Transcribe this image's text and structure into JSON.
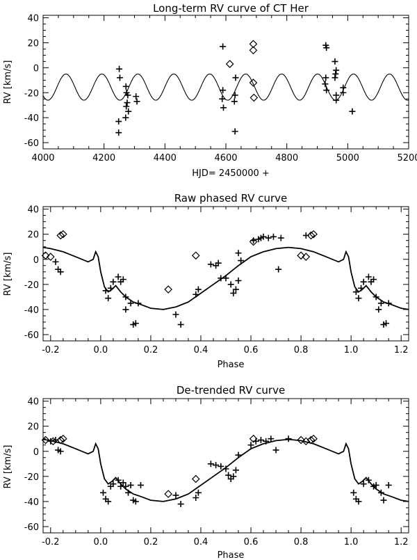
{
  "chart_data": [
    {
      "type": "scatter",
      "title": "Long-term RV curve of CT Her",
      "xlabel": "HJD= 2450000  +",
      "ylabel": "RV [km/s]",
      "xlim": [
        4000,
        5200
      ],
      "ylim": [
        -65,
        42
      ],
      "xticks": [
        4000,
        4200,
        4400,
        4600,
        4800,
        5000,
        5200
      ],
      "yticks": [
        -60,
        -40,
        -20,
        0,
        20,
        40
      ],
      "curve": {
        "name": "long-term model",
        "mean": -15.5,
        "amplitude": 10.5,
        "period": 118,
        "phase0": 4075
      },
      "series": [
        {
          "name": "plus",
          "marker": "+",
          "points": [
            [
              4250,
              -1
            ],
            [
              4252,
              -8
            ],
            [
              4248,
              -43
            ],
            [
              4248,
              -52
            ],
            [
              4272,
              -15
            ],
            [
              4274,
              -20
            ],
            [
              4276,
              -28
            ],
            [
              4273,
              -31
            ],
            [
              4271,
              -40
            ],
            [
              4280,
              -35
            ],
            [
              4278,
              -22
            ],
            [
              4305,
              -23
            ],
            [
              4308,
              -27
            ],
            [
              4590,
              17
            ],
            [
              4590,
              -18
            ],
            [
              4588,
              -25
            ],
            [
              4592,
              -32
            ],
            [
              4632,
              -8
            ],
            [
              4628,
              -27
            ],
            [
              4630,
              -22
            ],
            [
              4630,
              -51
            ],
            [
              4928,
              18
            ],
            [
              4930,
              16
            ],
            [
              4926,
              -13
            ],
            [
              4930,
              -18
            ],
            [
              4928,
              -8
            ],
            [
              4958,
              5
            ],
            [
              4962,
              -2
            ],
            [
              4960,
              -5
            ],
            [
              4958,
              -8
            ],
            [
              4962,
              -22
            ],
            [
              4962,
              -26
            ],
            [
              4985,
              -16
            ],
            [
              4985,
              -20
            ],
            [
              5015,
              -35
            ]
          ]
        },
        {
          "name": "diamond",
          "marker": "diamond",
          "points": [
            [
              4613,
              3
            ],
            [
              4690,
              19
            ],
            [
              4690,
              14
            ],
            [
              4690,
              -12
            ],
            [
              4692,
              -24
            ]
          ]
        }
      ]
    },
    {
      "type": "scatter",
      "title": "Raw phased RV curve",
      "xlabel": "Phase",
      "ylabel": "RV [km/s]",
      "xlim": [
        -0.23,
        1.23
      ],
      "ylim": [
        -65,
        42
      ],
      "xticks": [
        -0.2,
        0.0,
        0.2,
        0.4,
        0.6,
        0.8,
        1.0,
        1.2
      ],
      "yticks": [
        -60,
        -40,
        -20,
        0,
        20,
        40
      ],
      "curve": {
        "name": "model",
        "points": [
          [
            -0.23,
            9.5
          ],
          [
            -0.2,
            8.5
          ],
          [
            -0.15,
            6
          ],
          [
            -0.1,
            2
          ],
          [
            -0.05,
            -2
          ],
          [
            -0.03,
            0
          ],
          [
            -0.02,
            6
          ],
          [
            -0.01,
            2
          ],
          [
            0.0,
            -10
          ],
          [
            0.015,
            -22
          ],
          [
            0.03,
            -26
          ],
          [
            0.045,
            -24
          ],
          [
            0.06,
            -21
          ],
          [
            0.08,
            -26
          ],
          [
            0.1,
            -30
          ],
          [
            0.13,
            -34
          ],
          [
            0.16,
            -36
          ],
          [
            0.2,
            -39
          ],
          [
            0.25,
            -40
          ],
          [
            0.3,
            -38
          ],
          [
            0.35,
            -34
          ],
          [
            0.4,
            -27
          ],
          [
            0.45,
            -20
          ],
          [
            0.5,
            -13
          ],
          [
            0.55,
            -5
          ],
          [
            0.6,
            2
          ],
          [
            0.65,
            6
          ],
          [
            0.7,
            8.5
          ],
          [
            0.75,
            9.5
          ],
          [
            0.8,
            8.5
          ],
          [
            0.85,
            6
          ],
          [
            0.9,
            2
          ],
          [
            0.95,
            -2
          ],
          [
            0.97,
            0
          ],
          [
            0.98,
            6
          ],
          [
            0.99,
            2
          ],
          [
            1.0,
            -10
          ],
          [
            1.015,
            -22
          ],
          [
            1.03,
            -26
          ],
          [
            1.045,
            -24
          ],
          [
            1.06,
            -21
          ],
          [
            1.08,
            -26
          ],
          [
            1.1,
            -30
          ],
          [
            1.13,
            -34
          ],
          [
            1.16,
            -36
          ],
          [
            1.2,
            -39
          ],
          [
            1.23,
            -40
          ]
        ]
      },
      "series": [
        {
          "name": "plus",
          "marker": "+",
          "points": [
            [
              -0.18,
              -2
            ],
            [
              -0.17,
              -8
            ],
            [
              -0.16,
              -10
            ],
            [
              0.02,
              -25
            ],
            [
              0.03,
              -31
            ],
            [
              0.04,
              -23
            ],
            [
              0.05,
              -18
            ],
            [
              0.07,
              -14
            ],
            [
              0.08,
              -18
            ],
            [
              0.09,
              -16
            ],
            [
              0.1,
              -30
            ],
            [
              0.1,
              -40
            ],
            [
              0.12,
              -35
            ],
            [
              0.13,
              -52
            ],
            [
              0.14,
              -51
            ],
            [
              0.15,
              -35
            ],
            [
              0.3,
              -44
            ],
            [
              0.32,
              -52
            ],
            [
              0.38,
              -28
            ],
            [
              0.39,
              -24
            ],
            [
              0.44,
              -4
            ],
            [
              0.46,
              -5
            ],
            [
              0.47,
              -3
            ],
            [
              0.48,
              -15
            ],
            [
              0.5,
              -15
            ],
            [
              0.52,
              -20
            ],
            [
              0.53,
              -27
            ],
            [
              0.54,
              -24
            ],
            [
              0.55,
              -17
            ],
            [
              0.55,
              5
            ],
            [
              0.56,
              -1
            ],
            [
              0.61,
              15
            ],
            [
              0.63,
              16
            ],
            [
              0.64,
              17
            ],
            [
              0.65,
              18
            ],
            [
              0.67,
              17
            ],
            [
              0.69,
              18
            ],
            [
              0.71,
              -8
            ],
            [
              0.72,
              17
            ],
            [
              0.82,
              19
            ],
            [
              1.02,
              -26
            ],
            [
              1.03,
              -31
            ],
            [
              1.04,
              -23
            ],
            [
              1.05,
              -18
            ],
            [
              1.07,
              -14
            ],
            [
              1.08,
              -18
            ],
            [
              1.09,
              -16
            ],
            [
              1.1,
              -30
            ],
            [
              1.11,
              -40
            ],
            [
              1.12,
              -35
            ],
            [
              1.13,
              -52
            ],
            [
              1.14,
              -51
            ],
            [
              1.15,
              -35
            ]
          ]
        },
        {
          "name": "diamond",
          "marker": "diamond",
          "points": [
            [
              -0.22,
              3
            ],
            [
              -0.2,
              2
            ],
            [
              -0.16,
              19
            ],
            [
              -0.15,
              20
            ],
            [
              0.27,
              -24
            ],
            [
              0.38,
              3
            ],
            [
              0.61,
              14
            ],
            [
              0.8,
              3
            ],
            [
              0.82,
              2
            ],
            [
              0.84,
              19
            ],
            [
              0.85,
              20
            ]
          ]
        }
      ]
    },
    {
      "type": "scatter",
      "title": "De-trended RV curve",
      "xlabel": "Phase",
      "ylabel": "RV [km/s]",
      "xlim": [
        -0.23,
        1.23
      ],
      "ylim": [
        -65,
        42
      ],
      "xticks": [
        -0.2,
        0.0,
        0.2,
        0.4,
        0.6,
        0.8,
        1.0,
        1.2
      ],
      "yticks": [
        -60,
        -40,
        -20,
        0,
        20,
        40
      ],
      "curve": {
        "name": "model",
        "points": [
          [
            -0.23,
            9.5
          ],
          [
            -0.2,
            8.5
          ],
          [
            -0.15,
            6
          ],
          [
            -0.1,
            2
          ],
          [
            -0.05,
            -2
          ],
          [
            -0.03,
            0
          ],
          [
            -0.02,
            6
          ],
          [
            -0.01,
            2
          ],
          [
            0.0,
            -10
          ],
          [
            0.015,
            -22
          ],
          [
            0.03,
            -26
          ],
          [
            0.045,
            -24
          ],
          [
            0.06,
            -21
          ],
          [
            0.08,
            -26
          ],
          [
            0.1,
            -30
          ],
          [
            0.13,
            -34
          ],
          [
            0.16,
            -36
          ],
          [
            0.2,
            -39
          ],
          [
            0.25,
            -40
          ],
          [
            0.3,
            -38
          ],
          [
            0.35,
            -34
          ],
          [
            0.4,
            -27
          ],
          [
            0.45,
            -20
          ],
          [
            0.5,
            -13
          ],
          [
            0.55,
            -5
          ],
          [
            0.6,
            2
          ],
          [
            0.65,
            6
          ],
          [
            0.7,
            8.5
          ],
          [
            0.75,
            9.5
          ],
          [
            0.8,
            8.5
          ],
          [
            0.85,
            6
          ],
          [
            0.9,
            2
          ],
          [
            0.95,
            -2
          ],
          [
            0.97,
            0
          ],
          [
            0.98,
            6
          ],
          [
            0.99,
            2
          ],
          [
            1.0,
            -10
          ],
          [
            1.015,
            -22
          ],
          [
            1.03,
            -26
          ],
          [
            1.045,
            -24
          ],
          [
            1.06,
            -21
          ],
          [
            1.08,
            -26
          ],
          [
            1.1,
            -30
          ],
          [
            1.13,
            -34
          ],
          [
            1.16,
            -36
          ],
          [
            1.2,
            -39
          ],
          [
            1.23,
            -40
          ]
        ]
      },
      "series": [
        {
          "name": "plus",
          "marker": "+",
          "points": [
            [
              -0.2,
              8
            ],
            [
              -0.18,
              9
            ],
            [
              -0.17,
              1
            ],
            [
              -0.16,
              0
            ],
            [
              0.01,
              -33
            ],
            [
              0.02,
              -38
            ],
            [
              0.03,
              -40
            ],
            [
              0.04,
              -28
            ],
            [
              0.05,
              -26
            ],
            [
              0.07,
              -23
            ],
            [
              0.08,
              -28
            ],
            [
              0.09,
              -25
            ],
            [
              0.1,
              -28
            ],
            [
              0.11,
              -33
            ],
            [
              0.12,
              -27
            ],
            [
              0.13,
              -39
            ],
            [
              0.14,
              -40
            ],
            [
              0.16,
              -27
            ],
            [
              0.3,
              -35
            ],
            [
              0.32,
              -42
            ],
            [
              0.38,
              -37
            ],
            [
              0.39,
              -33
            ],
            [
              0.44,
              -10
            ],
            [
              0.46,
              -11
            ],
            [
              0.48,
              -12
            ],
            [
              0.5,
              -14
            ],
            [
              0.51,
              -19
            ],
            [
              0.52,
              -22
            ],
            [
              0.53,
              -20
            ],
            [
              0.54,
              -15
            ],
            [
              0.55,
              -3
            ],
            [
              0.6,
              5
            ],
            [
              0.62,
              8
            ],
            [
              0.64,
              9
            ],
            [
              0.66,
              8
            ],
            [
              0.68,
              10
            ],
            [
              0.7,
              1
            ],
            [
              0.75,
              10
            ],
            [
              1.01,
              -33
            ],
            [
              1.02,
              -38
            ],
            [
              1.03,
              -40
            ],
            [
              1.05,
              -26
            ],
            [
              1.07,
              -23
            ],
            [
              1.09,
              -28
            ],
            [
              1.1,
              -27
            ],
            [
              1.12,
              -33
            ],
            [
              1.13,
              -39
            ],
            [
              1.15,
              -27
            ]
          ]
        },
        {
          "name": "diamond",
          "marker": "diamond",
          "points": [
            [
              -0.22,
              9
            ],
            [
              -0.19,
              8
            ],
            [
              -0.16,
              9
            ],
            [
              -0.15,
              10
            ],
            [
              0.27,
              -34
            ],
            [
              0.38,
              -22
            ],
            [
              0.61,
              10
            ],
            [
              0.8,
              9
            ],
            [
              0.82,
              8
            ],
            [
              0.84,
              9
            ],
            [
              0.85,
              10
            ]
          ]
        }
      ]
    }
  ]
}
